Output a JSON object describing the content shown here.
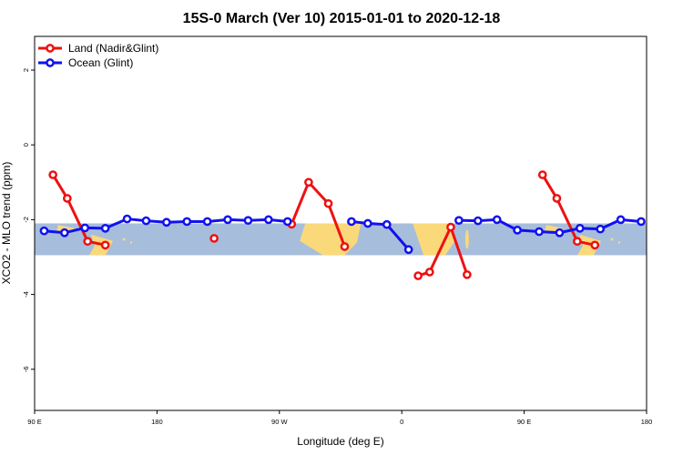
{
  "chart_data": {
    "type": "line",
    "title": "15S-0 March (Ver 10)   2015-01-01 to 2020-12-18",
    "xlabel": "Longitude (deg E)",
    "ylabel": "XCO2 - MLO trend (ppm)",
    "xlim": [
      90,
      540
    ],
    "ylim": [
      -7.1,
      2.9
    ],
    "x_ticks": [
      {
        "value": 90,
        "label": "90 E"
      },
      {
        "value": 180,
        "label": "180"
      },
      {
        "value": 270,
        "label": "90 W"
      },
      {
        "value": 360,
        "label": "0"
      },
      {
        "value": 450,
        "label": "90 E"
      },
      {
        "value": 540,
        "label": "180"
      }
    ],
    "y_ticks": [
      {
        "value": 2,
        "label": "2"
      },
      {
        "value": 0,
        "label": "0"
      },
      {
        "value": -2,
        "label": "-2"
      },
      {
        "value": -4,
        "label": "-4"
      },
      {
        "value": -6,
        "label": "-6"
      }
    ],
    "map_band": {
      "y_range": [
        -2.95,
        -2.1
      ],
      "ocean_color": "#a7bddc",
      "land_color": "#f9d97a"
    },
    "series": [
      {
        "name": "Land (Nadir&Glint)",
        "color": "#ee1111",
        "segments": [
          [
            [
              103.5,
              -0.8
            ],
            [
              114,
              -1.43
            ],
            [
              129,
              -2.58
            ],
            [
              142,
              -2.68
            ]
          ],
          [
            [
              222,
              -2.5
            ]
          ],
          [
            [
              279,
              -2.12
            ],
            [
              291.5,
              -1.0
            ],
            [
              306,
              -1.57
            ],
            [
              318,
              -2.72
            ]
          ],
          [
            [
              372,
              -3.5
            ],
            [
              380.5,
              -3.4
            ],
            [
              396,
              -2.2
            ],
            [
              408,
              -3.47
            ]
          ],
          [
            [
              463.5,
              -0.8
            ],
            [
              474,
              -1.43
            ],
            [
              489,
              -2.58
            ],
            [
              502,
              -2.68
            ]
          ]
        ]
      },
      {
        "name": "Ocean (Glint)",
        "color": "#1111ee",
        "segments": [
          [
            [
              97,
              -2.3
            ],
            [
              112,
              -2.35
            ],
            [
              127,
              -2.22
            ],
            [
              142,
              -2.23
            ],
            [
              158,
              -1.98
            ],
            [
              172,
              -2.03
            ],
            [
              187,
              -2.07
            ],
            [
              202,
              -2.05
            ],
            [
              217,
              -2.05
            ],
            [
              232,
              -2.0
            ],
            [
              247,
              -2.02
            ],
            [
              262,
              -2.0
            ],
            [
              276,
              -2.05
            ]
          ],
          [
            [
              323,
              -2.05
            ],
            [
              335,
              -2.1
            ],
            [
              349,
              -2.13
            ],
            [
              365,
              -2.8
            ]
          ],
          [
            [
              402,
              -2.02
            ],
            [
              416,
              -2.03
            ],
            [
              430,
              -2.0
            ],
            [
              445,
              -2.28
            ],
            [
              461,
              -2.32
            ],
            [
              476,
              -2.35
            ],
            [
              491,
              -2.23
            ],
            [
              506,
              -2.25
            ],
            [
              521,
              -2.0
            ],
            [
              536,
              -2.05
            ]
          ]
        ]
      }
    ],
    "legend": {
      "position": "top-left"
    }
  }
}
